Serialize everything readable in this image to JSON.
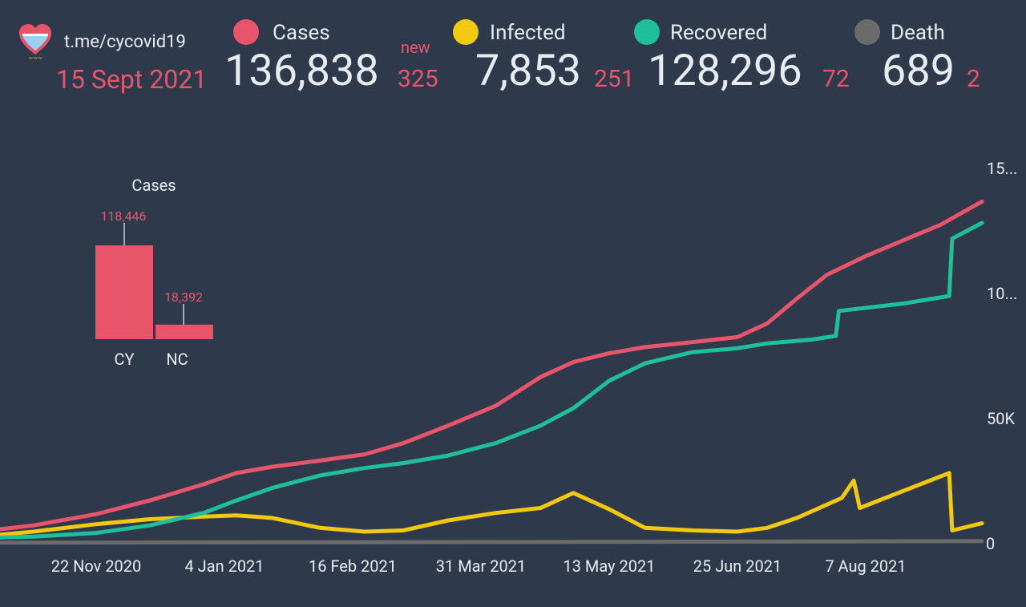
{
  "header": {
    "source": "t.me/cycovid19",
    "date": "15 Sept 2021",
    "new_label": "new"
  },
  "stats": [
    {
      "label": "Cases",
      "value": "136,838",
      "delta": "325",
      "color": "#e8556a"
    },
    {
      "label": "Infected",
      "value": "7,853",
      "delta": "251",
      "color": "#f2c811"
    },
    {
      "label": "Recovered",
      "value": "128,296",
      "delta": "72",
      "color": "#1fbf9a"
    },
    {
      "label": "Death",
      "value": "689",
      "delta": "2",
      "color": "#6b6b6b"
    }
  ],
  "chart_data": [
    {
      "type": "bar",
      "title": "Cases",
      "categories": [
        "CY",
        "NC"
      ],
      "values": [
        118446,
        18392
      ],
      "value_labels": [
        "118,446",
        "18,392"
      ],
      "color": "#e8556a"
    },
    {
      "type": "line",
      "x_ticks": [
        "22 Nov 2020",
        "4 Jan 2021",
        "16 Feb 2021",
        "31 Mar 2021",
        "13 May 2021",
        "25 Jun 2021",
        "7 Aug 2021"
      ],
      "y_ticks": [
        "0",
        "50K",
        "10...",
        "15..."
      ],
      "ylim": [
        0,
        150000
      ],
      "grid": false,
      "series": [
        {
          "name": "Cases",
          "color": "#e8556a",
          "points": [
            [
              "2020-10-14",
              4500
            ],
            [
              "2020-11-01",
              7000
            ],
            [
              "2020-11-22",
              11500
            ],
            [
              "2020-12-10",
              17000
            ],
            [
              "2020-12-28",
              23500
            ],
            [
              "2021-01-08",
              28000
            ],
            [
              "2021-01-20",
              30500
            ],
            [
              "2021-02-05",
              33000
            ],
            [
              "2021-02-20",
              35500
            ],
            [
              "2021-03-05",
              40000
            ],
            [
              "2021-03-20",
              47000
            ],
            [
              "2021-04-05",
              55000
            ],
            [
              "2021-04-20",
              66500
            ],
            [
              "2021-05-01",
              72500
            ],
            [
              "2021-05-13",
              76000
            ],
            [
              "2021-05-25",
              78500
            ],
            [
              "2021-06-10",
              80500
            ],
            [
              "2021-06-25",
              82500
            ],
            [
              "2021-07-05",
              88000
            ],
            [
              "2021-07-15",
              98000
            ],
            [
              "2021-07-25",
              107500
            ],
            [
              "2021-08-07",
              115000
            ],
            [
              "2021-08-20",
              121500
            ],
            [
              "2021-09-01",
              127500
            ],
            [
              "2021-09-15",
              136838
            ]
          ]
        },
        {
          "name": "Recovered",
          "color": "#1fbf9a",
          "points": [
            [
              "2020-10-14",
              2000
            ],
            [
              "2020-11-01",
              2500
            ],
            [
              "2020-11-22",
              4000
            ],
            [
              "2020-12-10",
              7000
            ],
            [
              "2020-12-28",
              12000
            ],
            [
              "2021-01-08",
              17000
            ],
            [
              "2021-01-20",
              22000
            ],
            [
              "2021-02-05",
              27000
            ],
            [
              "2021-02-20",
              30000
            ],
            [
              "2021-03-05",
              32000
            ],
            [
              "2021-03-20",
              35000
            ],
            [
              "2021-04-05",
              40000
            ],
            [
              "2021-04-20",
              47000
            ],
            [
              "2021-05-01",
              54000
            ],
            [
              "2021-05-13",
              65000
            ],
            [
              "2021-05-25",
              72000
            ],
            [
              "2021-06-10",
              76500
            ],
            [
              "2021-06-25",
              78000
            ],
            [
              "2021-07-05",
              80000
            ],
            [
              "2021-07-20",
              81500
            ],
            [
              "2021-07-28",
              83000
            ],
            [
              "2021-07-29",
              93000
            ],
            [
              "2021-08-20",
              96000
            ],
            [
              "2021-09-04",
              99000
            ],
            [
              "2021-09-05",
              122000
            ],
            [
              "2021-09-15",
              128296
            ]
          ]
        },
        {
          "name": "Infected",
          "color": "#f2c811",
          "points": [
            [
              "2020-10-14",
              2500
            ],
            [
              "2020-11-01",
              4500
            ],
            [
              "2020-11-22",
              7500
            ],
            [
              "2020-12-10",
              9500
            ],
            [
              "2020-12-28",
              10500
            ],
            [
              "2021-01-08",
              11000
            ],
            [
              "2021-01-20",
              10000
            ],
            [
              "2021-02-05",
              6000
            ],
            [
              "2021-02-20",
              4500
            ],
            [
              "2021-03-05",
              5000
            ],
            [
              "2021-03-20",
              9000
            ],
            [
              "2021-04-05",
              12000
            ],
            [
              "2021-04-20",
              14000
            ],
            [
              "2021-05-01",
              20000
            ],
            [
              "2021-05-13",
              13500
            ],
            [
              "2021-05-25",
              6000
            ],
            [
              "2021-06-10",
              5000
            ],
            [
              "2021-06-25",
              4500
            ],
            [
              "2021-07-05",
              6000
            ],
            [
              "2021-07-15",
              10000
            ],
            [
              "2021-07-30",
              18000
            ],
            [
              "2021-08-03",
              25000
            ],
            [
              "2021-08-05",
              14000
            ],
            [
              "2021-08-20",
              21000
            ],
            [
              "2021-09-04",
              28000
            ],
            [
              "2021-09-05",
              5000
            ],
            [
              "2021-09-15",
              7853
            ]
          ]
        },
        {
          "name": "Death",
          "color": "#6b6b6b",
          "points": [
            [
              "2020-10-14",
              50
            ],
            [
              "2021-01-04",
              200
            ],
            [
              "2021-05-13",
              400
            ],
            [
              "2021-09-15",
              689
            ]
          ]
        }
      ]
    }
  ]
}
